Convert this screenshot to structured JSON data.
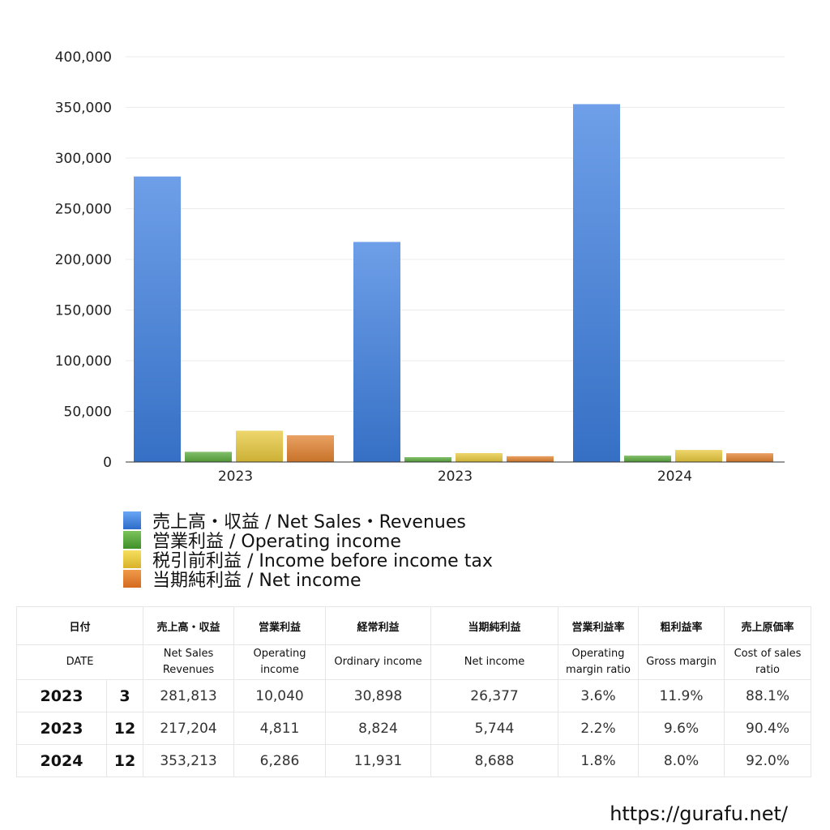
{
  "chart_data": {
    "type": "bar",
    "categories": [
      "2023",
      "2023",
      "2024"
    ],
    "series": [
      {
        "name": "売上高・収益 / Net Sales・Revenues",
        "color": "#3d7fe0",
        "values": [
          281813,
          217204,
          353213
        ]
      },
      {
        "name": "営業利益 / Operating income",
        "color": "#5aaa3c",
        "values": [
          10040,
          4811,
          6286
        ]
      },
      {
        "name": "税引前利益 / Income before income tax",
        "color": "#e8c83c",
        "values": [
          30898,
          8824,
          11931
        ]
      },
      {
        "name": "当期純利益 / Net income",
        "color": "#e2812f",
        "values": [
          26377,
          5744,
          8688
        ]
      }
    ],
    "ylim": [
      0,
      400000
    ],
    "yticks": [
      "0",
      "50,000",
      "100,000",
      "150,000",
      "200,000",
      "250,000",
      "300,000",
      "350,000",
      "400,000"
    ],
    "grid": true,
    "legend": "bottom"
  },
  "table": {
    "headers_jp": [
      "日付",
      "売上高・収益",
      "営業利益",
      "経常利益",
      "当期純利益",
      "営業利益率",
      "粗利益率",
      "売上原価率"
    ],
    "headers_en": [
      "DATE",
      "Net Sales\nRevenues",
      "Operating\nincome",
      "Ordinary income",
      "Net income",
      "Operating\nmargin ratio",
      "Gross margin",
      "Cost of sales\nratio"
    ],
    "rows": [
      {
        "year": "2023",
        "month": "3",
        "sales": "281,813",
        "operating": "10,040",
        "ordinary": "30,898",
        "net": "26,377",
        "op_margin": "3.6%",
        "gross": "11.9%",
        "cost": "88.1%"
      },
      {
        "year": "2023",
        "month": "12",
        "sales": "217,204",
        "operating": "4,811",
        "ordinary": "8,824",
        "net": "5,744",
        "op_margin": "2.2%",
        "gross": "9.6%",
        "cost": "90.4%"
      },
      {
        "year": "2024",
        "month": "12",
        "sales": "353,213",
        "operating": "6,286",
        "ordinary": "11,931",
        "net": "8,688",
        "op_margin": "1.8%",
        "gross": "8.0%",
        "cost": "92.0%"
      }
    ]
  },
  "footer": {
    "url": "https://gurafu.net/"
  }
}
